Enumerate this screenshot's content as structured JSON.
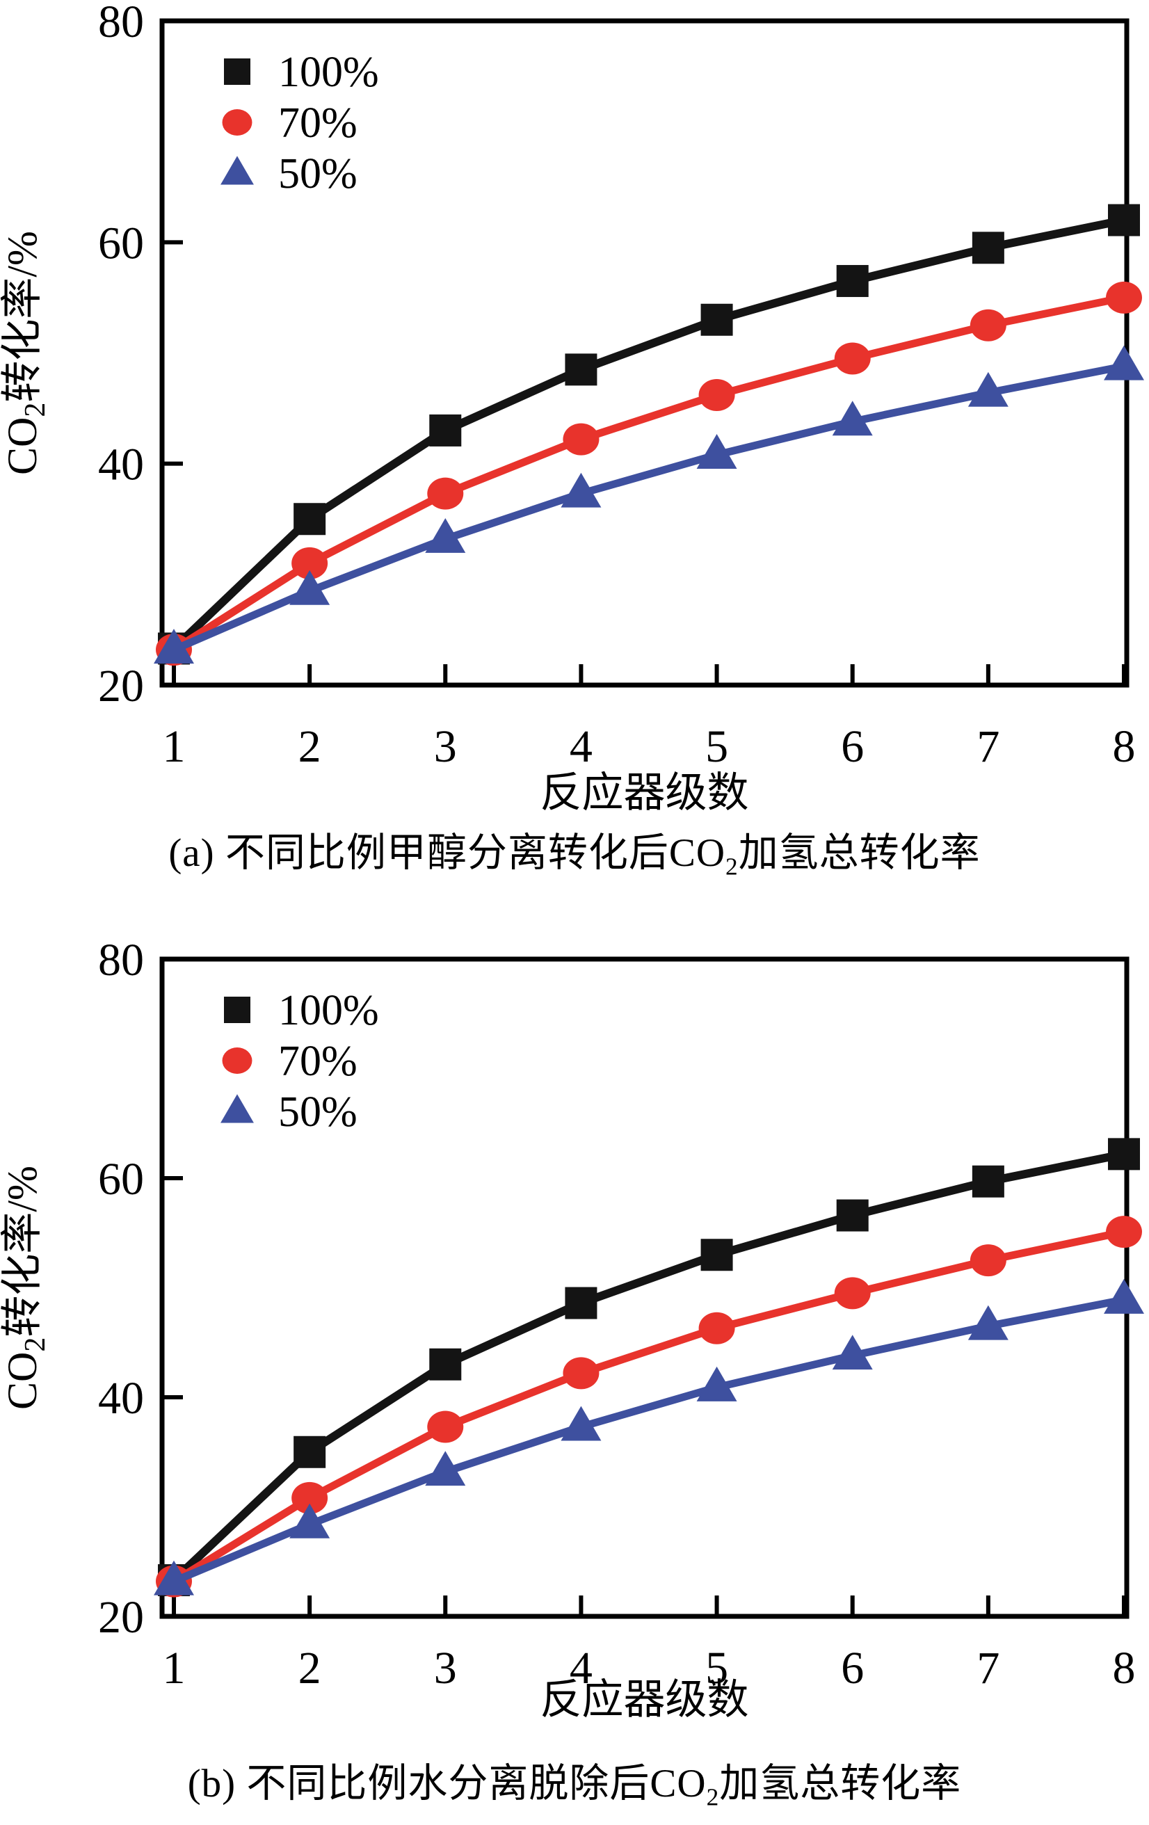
{
  "figure": {
    "background": "#ffffff",
    "axis_color": "#000000",
    "text_color": "#000000"
  },
  "chart_data": [
    {
      "id": "a",
      "type": "line",
      "caption": {
        "pre": "(a) 不同比例甲醇分离转化后CO",
        "sub": "2",
        "post": "加氢总转化率"
      },
      "xlabel": "反应器级数",
      "ylabel": {
        "pre": "CO",
        "sub": "2",
        "post": "转化率/%"
      },
      "categories": [
        1,
        2,
        3,
        4,
        5,
        6,
        7,
        8
      ],
      "xticks": [
        1,
        2,
        3,
        4,
        5,
        6,
        7,
        8
      ],
      "yticks": [
        20,
        40,
        60,
        80
      ],
      "ylim": [
        20,
        80
      ],
      "grid": false,
      "legend": {
        "position": "upper-left",
        "entries": [
          "100%",
          "70%",
          "50%"
        ]
      },
      "series": [
        {
          "name": "100%",
          "marker": "square",
          "color": "#141414",
          "values": [
            23.3,
            35.0,
            43.0,
            48.5,
            53.0,
            56.5,
            59.5,
            62.0
          ]
        },
        {
          "name": "70%",
          "marker": "circle",
          "color": "#e8332c",
          "values": [
            23.2,
            31.0,
            37.3,
            42.2,
            46.2,
            49.5,
            52.5,
            55.0
          ]
        },
        {
          "name": "50%",
          "marker": "triangle-up",
          "color": "#3e509f",
          "values": [
            23.2,
            28.5,
            33.2,
            37.3,
            40.8,
            43.8,
            46.4,
            48.8
          ]
        }
      ]
    },
    {
      "id": "b",
      "type": "line",
      "caption": {
        "pre": "(b) 不同比例水分离脱除后CO",
        "sub": "2",
        "post": "加氢总转化率"
      },
      "xlabel": "反应器级数",
      "ylabel": {
        "pre": "CO",
        "sub": "2",
        "post": "转化率/%"
      },
      "categories": [
        1,
        2,
        3,
        4,
        5,
        6,
        7,
        8
      ],
      "xticks": [
        1,
        2,
        3,
        4,
        5,
        6,
        7,
        8
      ],
      "yticks": [
        20,
        40,
        60,
        80
      ],
      "ylim": [
        20,
        80
      ],
      "grid": false,
      "legend": {
        "position": "upper-left",
        "entries": [
          "100%",
          "70%",
          "50%"
        ]
      },
      "series": [
        {
          "name": "100%",
          "marker": "square",
          "color": "#141414",
          "values": [
            23.3,
            35.0,
            43.0,
            48.6,
            53.0,
            56.6,
            59.7,
            62.2
          ]
        },
        {
          "name": "70%",
          "marker": "circle",
          "color": "#e8332c",
          "values": [
            23.2,
            30.8,
            37.3,
            42.2,
            46.3,
            49.5,
            52.5,
            55.1
          ]
        },
        {
          "name": "50%",
          "marker": "triangle-up",
          "color": "#3e509f",
          "values": [
            23.2,
            28.4,
            33.2,
            37.3,
            40.9,
            43.8,
            46.5,
            48.9
          ]
        }
      ]
    }
  ]
}
